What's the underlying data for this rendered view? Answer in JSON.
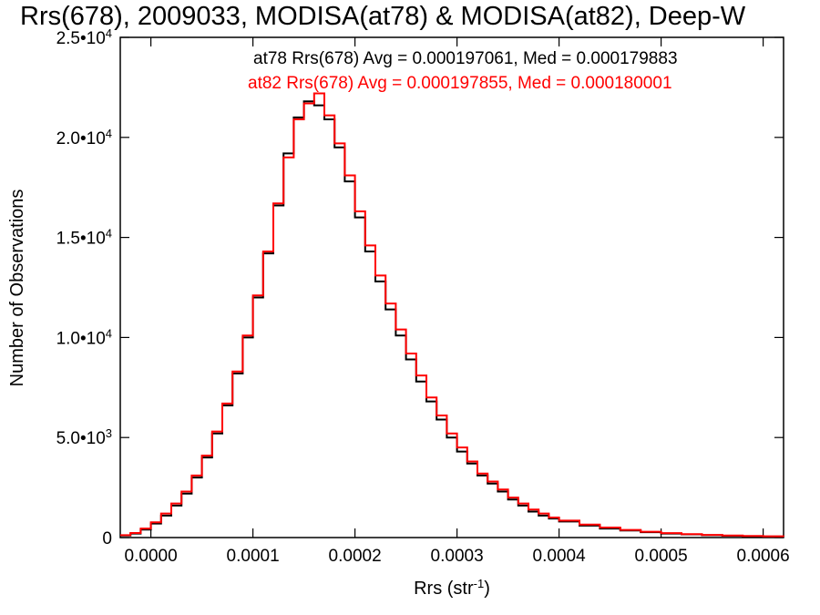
{
  "chart_data": {
    "type": "line",
    "title": "Rrs(678), 2009033, MODISA(at78) & MODISA(at82), Deep-W",
    "xlabel": "Rrs (str",
    "xlabel_sup": "-1",
    "xlabel_close": ")",
    "ylabel": "Number of Observations",
    "xlim": [
      -3e-05,
      0.00062
    ],
    "ylim": [
      0,
      25000
    ],
    "xticks": [
      {
        "value": 0.0,
        "label": "0.0000"
      },
      {
        "value": 0.0001,
        "label": "0.0001"
      },
      {
        "value": 0.0002,
        "label": "0.0002"
      },
      {
        "value": 0.0003,
        "label": "0.0003"
      },
      {
        "value": 0.0004,
        "label": "0.0004"
      },
      {
        "value": 0.0005,
        "label": "0.0005"
      },
      {
        "value": 0.0006,
        "label": "0.0006"
      }
    ],
    "yticks": [
      {
        "value": 0,
        "label": "0",
        "sup": ""
      },
      {
        "value": 5000,
        "label": "5.0•10",
        "sup": "3"
      },
      {
        "value": 10000,
        "label": "1.0•10",
        "sup": "4"
      },
      {
        "value": 15000,
        "label": "1.5•10",
        "sup": "4"
      },
      {
        "value": 20000,
        "label": "2.0•10",
        "sup": "4"
      },
      {
        "value": 25000,
        "label": "2.5•10",
        "sup": "4"
      }
    ],
    "series": [
      {
        "legend": "at78 Rrs(678) Avg = 0.000197061, Med = 0.000179883",
        "color": "#000000",
        "points": [
          [
            -3e-05,
            100
          ],
          [
            -2e-05,
            200
          ],
          [
            -1e-05,
            400
          ],
          [
            0.0,
            700
          ],
          [
            1e-05,
            1100
          ],
          [
            2e-05,
            1600
          ],
          [
            3e-05,
            2200
          ],
          [
            4e-05,
            3000
          ],
          [
            5e-05,
            4000
          ],
          [
            6e-05,
            5200
          ],
          [
            7e-05,
            6600
          ],
          [
            8e-05,
            8200
          ],
          [
            9e-05,
            10000
          ],
          [
            0.0001,
            12000
          ],
          [
            0.00011,
            14200
          ],
          [
            0.00012,
            16600
          ],
          [
            0.00013,
            19200
          ],
          [
            0.00014,
            21000
          ],
          [
            0.00015,
            21800
          ],
          [
            0.00016,
            21600
          ],
          [
            0.00017,
            20900
          ],
          [
            0.00018,
            19500
          ],
          [
            0.00019,
            17800
          ],
          [
            0.0002,
            16000
          ],
          [
            0.00021,
            14300
          ],
          [
            0.00022,
            12800
          ],
          [
            0.00023,
            11400
          ],
          [
            0.00024,
            10100
          ],
          [
            0.00025,
            8900
          ],
          [
            0.00026,
            7800
          ],
          [
            0.00027,
            6800
          ],
          [
            0.00028,
            5900
          ],
          [
            0.00029,
            5000
          ],
          [
            0.0003,
            4300
          ],
          [
            0.00031,
            3700
          ],
          [
            0.00032,
            3100
          ],
          [
            0.00033,
            2700
          ],
          [
            0.00034,
            2300
          ],
          [
            0.00035,
            1900
          ],
          [
            0.00036,
            1600
          ],
          [
            0.00037,
            1300
          ],
          [
            0.00038,
            1100
          ],
          [
            0.00039,
            950
          ],
          [
            0.0004,
            800
          ],
          [
            0.00042,
            600
          ],
          [
            0.00044,
            450
          ],
          [
            0.00046,
            350
          ],
          [
            0.00048,
            270
          ],
          [
            0.0005,
            200
          ],
          [
            0.00052,
            160
          ],
          [
            0.00054,
            120
          ],
          [
            0.00056,
            90
          ],
          [
            0.00058,
            70
          ],
          [
            0.0006,
            50
          ],
          [
            0.00062,
            40
          ]
        ]
      },
      {
        "legend": "at82 Rrs(678) Avg = 0.000197855, Med = 0.000180001",
        "color": "#ff0000",
        "points": [
          [
            -3e-05,
            120
          ],
          [
            -2e-05,
            230
          ],
          [
            -1e-05,
            450
          ],
          [
            0.0,
            760
          ],
          [
            1e-05,
            1200
          ],
          [
            2e-05,
            1700
          ],
          [
            3e-05,
            2300
          ],
          [
            4e-05,
            3100
          ],
          [
            5e-05,
            4100
          ],
          [
            6e-05,
            5300
          ],
          [
            7e-05,
            6700
          ],
          [
            8e-05,
            8300
          ],
          [
            9e-05,
            10100
          ],
          [
            0.0001,
            12100
          ],
          [
            0.00011,
            14300
          ],
          [
            0.00012,
            16700
          ],
          [
            0.00013,
            19000
          ],
          [
            0.00014,
            20900
          ],
          [
            0.00015,
            21700
          ],
          [
            0.00016,
            22200
          ],
          [
            0.00017,
            21100
          ],
          [
            0.00018,
            19700
          ],
          [
            0.00019,
            18100
          ],
          [
            0.0002,
            16300
          ],
          [
            0.00021,
            14600
          ],
          [
            0.00022,
            13100
          ],
          [
            0.00023,
            11700
          ],
          [
            0.00024,
            10400
          ],
          [
            0.00025,
            9200
          ],
          [
            0.00026,
            8100
          ],
          [
            0.00027,
            7000
          ],
          [
            0.00028,
            6100
          ],
          [
            0.00029,
            5200
          ],
          [
            0.0003,
            4500
          ],
          [
            0.00031,
            3800
          ],
          [
            0.00032,
            3200
          ],
          [
            0.00033,
            2800
          ],
          [
            0.00034,
            2400
          ],
          [
            0.00035,
            2000
          ],
          [
            0.00036,
            1700
          ],
          [
            0.00037,
            1400
          ],
          [
            0.00038,
            1200
          ],
          [
            0.00039,
            1000
          ],
          [
            0.0004,
            850
          ],
          [
            0.00042,
            650
          ],
          [
            0.00044,
            500
          ],
          [
            0.00046,
            380
          ],
          [
            0.00048,
            290
          ],
          [
            0.0005,
            220
          ],
          [
            0.00052,
            170
          ],
          [
            0.00054,
            130
          ],
          [
            0.00056,
            100
          ],
          [
            0.00058,
            80
          ],
          [
            0.0006,
            60
          ],
          [
            0.00062,
            45
          ]
        ]
      }
    ]
  }
}
